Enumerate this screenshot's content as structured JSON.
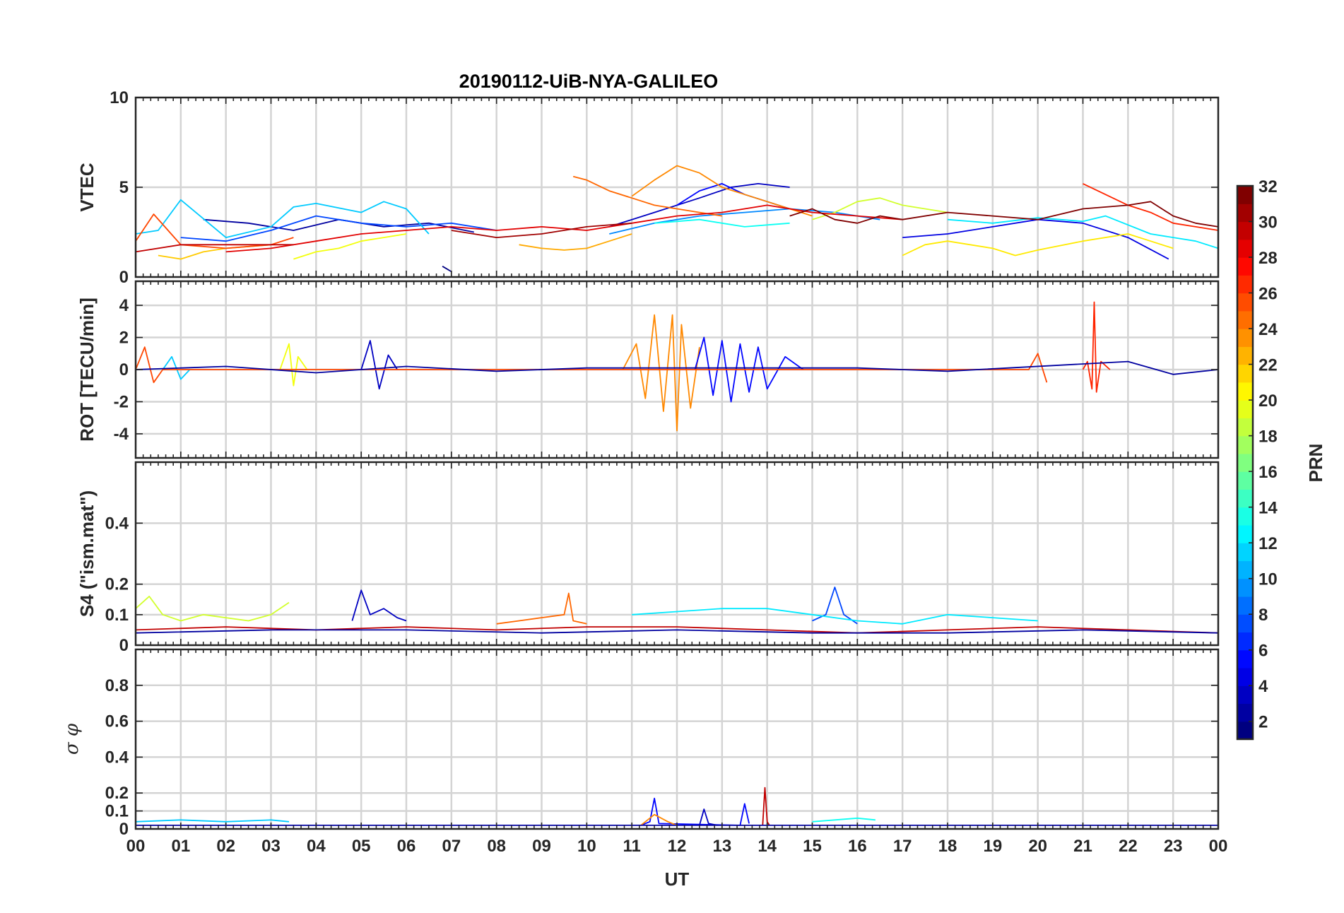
{
  "figure": {
    "title": "20190112-UiB-NYA-GALILEO",
    "xlabel": "UT",
    "x_tick_labels": [
      "00",
      "01",
      "02",
      "03",
      "04",
      "05",
      "06",
      "07",
      "08",
      "09",
      "10",
      "11",
      "12",
      "13",
      "14",
      "15",
      "16",
      "17",
      "18",
      "19",
      "20",
      "21",
      "22",
      "23",
      "00"
    ]
  },
  "colorbar": {
    "label": "PRN",
    "range": [
      1,
      32
    ],
    "tick_values": [
      2,
      4,
      6,
      8,
      10,
      12,
      14,
      16,
      18,
      20,
      22,
      24,
      26,
      28,
      30,
      32
    ],
    "tick_labels": [
      "2",
      "4",
      "6",
      "8",
      "10",
      "12",
      "14",
      "16",
      "18",
      "20",
      "22",
      "24",
      "26",
      "28",
      "30",
      "32"
    ],
    "colormap": "jet"
  },
  "chart_data": [
    {
      "type": "line",
      "panel": "VTEC",
      "title": "20190112-UiB-NYA-GALILEO",
      "ylabel": "VTEC",
      "xlabel": "",
      "xlim": [
        0,
        24
      ],
      "ylim": [
        0,
        10
      ],
      "grid": true,
      "y_ticks": [
        0,
        5,
        10
      ],
      "y_tick_labels": [
        "0",
        "5",
        "10"
      ],
      "series": [
        {
          "name": "PRN 1",
          "prn": 1,
          "x": [
            6.8,
            7.0
          ],
          "values": [
            0.6,
            0.3
          ]
        },
        {
          "name": "PRN 2",
          "prn": 2,
          "x": [
            1.5,
            2.5,
            3.5,
            4.5,
            5.5,
            6.5,
            7.5
          ],
          "values": [
            3.2,
            3.0,
            2.6,
            3.2,
            2.8,
            3.0,
            2.5
          ]
        },
        {
          "name": "PRN 3",
          "prn": 3,
          "x": [
            10.5,
            11.5,
            12.5,
            13.2,
            13.8,
            14.5
          ],
          "values": [
            2.8,
            3.6,
            4.4,
            5.0,
            5.2,
            5.0
          ]
        },
        {
          "name": "PRN 4",
          "prn": 4,
          "x": [
            17.0,
            18.0,
            19.0,
            20.0,
            21.0,
            22.0,
            22.9
          ],
          "values": [
            2.2,
            2.4,
            2.8,
            3.2,
            3.0,
            2.2,
            1.0
          ]
        },
        {
          "name": "PRN 5",
          "prn": 5,
          "x": [
            12.0,
            12.5,
            13.0,
            13.5,
            14.0,
            14.5
          ],
          "values": [
            4.0,
            4.8,
            5.2,
            4.6,
            4.2,
            3.8
          ]
        },
        {
          "name": "PRN 7",
          "prn": 7,
          "x": [
            1.0,
            2.0,
            3.0,
            4.0,
            5.0,
            6.0,
            7.0,
            8.0
          ],
          "values": [
            2.2,
            2.0,
            2.6,
            3.4,
            3.0,
            2.8,
            3.0,
            2.6
          ]
        },
        {
          "name": "PRN 9",
          "prn": 9,
          "x": [
            10.5,
            11.5,
            12.5,
            13.5,
            14.5,
            15.5,
            16.5
          ],
          "values": [
            2.4,
            3.0,
            3.4,
            3.6,
            3.8,
            3.6,
            3.2
          ]
        },
        {
          "name": "PRN 11",
          "prn": 11,
          "x": [
            0,
            0.5,
            1.0,
            2.0,
            3.0,
            3.5,
            4.0,
            5.0,
            5.5,
            6.0,
            6.5
          ],
          "values": [
            2.4,
            2.6,
            4.3,
            2.2,
            2.8,
            3.9,
            4.1,
            3.6,
            4.2,
            3.8,
            2.4
          ]
        },
        {
          "name": "PRN 12",
          "prn": 12,
          "x": [
            18.0,
            19.0,
            20.0,
            21.0,
            21.5,
            22.5,
            23.5,
            24.0
          ],
          "values": [
            3.2,
            3.0,
            3.3,
            3.1,
            3.4,
            2.4,
            2.0,
            1.6
          ]
        },
        {
          "name": "PRN 13",
          "prn": 13,
          "x": [
            11.5,
            12.0,
            12.5,
            13.0,
            13.5,
            14.0,
            14.5
          ],
          "values": [
            3.0,
            3.1,
            3.2,
            3.0,
            2.8,
            2.9,
            3.0
          ]
        },
        {
          "name": "PRN 19",
          "prn": 19,
          "x": [
            15.0,
            15.5,
            16.0,
            16.5,
            17.0,
            17.5,
            18.0
          ],
          "values": [
            3.2,
            3.6,
            4.2,
            4.4,
            4.0,
            3.8,
            3.6
          ]
        },
        {
          "name": "PRN 20",
          "prn": 20,
          "x": [
            3.5,
            4.0,
            4.5,
            5.0,
            5.5,
            6.0
          ],
          "values": [
            1.0,
            1.4,
            1.6,
            2.0,
            2.2,
            2.4
          ]
        },
        {
          "name": "PRN 21",
          "prn": 21,
          "x": [
            17.0,
            17.5,
            18.0,
            19.0,
            19.5,
            20.0,
            21.0,
            22.0,
            22.5,
            23.0
          ],
          "values": [
            1.2,
            1.8,
            2.0,
            1.6,
            1.2,
            1.5,
            2.0,
            2.4,
            2.0,
            1.6
          ]
        },
        {
          "name": "PRN 22",
          "prn": 22,
          "x": [
            0.5,
            1.0,
            1.5,
            2.0,
            3.0
          ],
          "values": [
            1.2,
            1.0,
            1.4,
            1.6,
            1.8
          ]
        },
        {
          "name": "PRN 23",
          "prn": 23,
          "x": [
            8.5,
            9.0,
            9.5,
            10.0,
            10.5,
            11.0
          ],
          "values": [
            1.8,
            1.6,
            1.5,
            1.6,
            2.0,
            2.4
          ]
        },
        {
          "name": "PRN 24",
          "prn": 24,
          "x": [
            11.0,
            11.5,
            12.0,
            12.5,
            13.0,
            13.5,
            14.0,
            14.5,
            15.0
          ],
          "values": [
            4.5,
            5.4,
            6.2,
            5.8,
            5.0,
            4.6,
            4.2,
            3.8,
            3.4
          ]
        },
        {
          "name": "PRN 25",
          "prn": 25,
          "x": [
            9.7,
            10.0,
            10.5,
            11.0,
            11.5,
            12.0,
            12.5,
            13.0
          ],
          "values": [
            5.6,
            5.4,
            4.8,
            4.4,
            4.0,
            3.8,
            3.6,
            3.4
          ]
        },
        {
          "name": "PRN 26",
          "prn": 26,
          "x": [
            0,
            0.4,
            1.0,
            2.0,
            3.0,
            3.5
          ],
          "values": [
            2.0,
            3.5,
            1.8,
            1.6,
            1.8,
            2.2
          ]
        },
        {
          "name": "PRN 27",
          "prn": 27,
          "x": [
            21.0,
            21.5,
            22.0,
            22.5,
            23.0,
            23.5,
            24.0
          ],
          "values": [
            5.2,
            4.6,
            4.0,
            3.6,
            3.0,
            2.8,
            2.6
          ]
        },
        {
          "name": "PRN 29",
          "prn": 29,
          "x": [
            2.0,
            3.0,
            4.0,
            5.0,
            6.0,
            7.0,
            8.0,
            9.0,
            10.0,
            11.0,
            12.0,
            13.0,
            14.0,
            15.0,
            16.0,
            17.0
          ],
          "values": [
            1.4,
            1.6,
            2.0,
            2.4,
            2.6,
            2.8,
            2.6,
            2.8,
            2.6,
            3.0,
            3.4,
            3.6,
            4.0,
            3.6,
            3.4,
            3.2
          ]
        },
        {
          "name": "PRN 30",
          "prn": 30,
          "x": [
            0,
            1.0,
            2.0,
            3.0,
            3.5
          ],
          "values": [
            1.4,
            1.8,
            1.8,
            1.8,
            1.8
          ]
        },
        {
          "name": "PRN 31",
          "prn": 31,
          "x": [
            7.0,
            8.0,
            9.0,
            10.0,
            11.0
          ],
          "values": [
            2.6,
            2.2,
            2.4,
            2.8,
            3.0
          ]
        },
        {
          "name": "PRN 33",
          "prn": 33,
          "x": [
            14.5,
            15.0,
            15.5,
            16.0,
            16.5,
            17.0,
            18.0,
            19.0,
            20.0,
            21.0,
            22.0,
            22.5,
            23.0,
            23.5,
            24.0
          ],
          "values": [
            3.4,
            3.8,
            3.2,
            3.0,
            3.4,
            3.2,
            3.6,
            3.4,
            3.2,
            3.8,
            4.0,
            4.2,
            3.4,
            3.0,
            2.8
          ]
        }
      ]
    },
    {
      "type": "line",
      "panel": "ROT",
      "ylabel": "ROT [TECU/min]",
      "xlabel": "",
      "xlim": [
        0,
        24
      ],
      "ylim": [
        -5.5,
        5.5
      ],
      "grid": true,
      "y_ticks": [
        -4,
        -2,
        0,
        2,
        4
      ],
      "y_tick_labels": [
        "-4",
        "-2",
        "0",
        "2",
        "4"
      ],
      "series": [
        {
          "name": "PRN 24",
          "prn": 24,
          "x": [
            10.8,
            11.1,
            11.3,
            11.5,
            11.7,
            11.9,
            12.0,
            12.1,
            12.3,
            12.5
          ],
          "values": [
            0,
            1.6,
            -1.8,
            3.4,
            -2.6,
            3.4,
            -3.8,
            2.8,
            -2.4,
            1.4
          ]
        },
        {
          "name": "PRN 5",
          "prn": 5,
          "x": [
            12.4,
            12.6,
            12.8,
            13.0,
            13.2,
            13.4,
            13.6,
            13.8,
            14.0,
            14.4,
            14.8
          ],
          "values": [
            0,
            2.0,
            -1.6,
            1.8,
            -2.0,
            1.6,
            -1.4,
            1.4,
            -1.2,
            0.8,
            0
          ]
        },
        {
          "name": "PRN 3",
          "prn": 3,
          "x": [
            5.0,
            5.2,
            5.4,
            5.6,
            5.8
          ],
          "values": [
            0,
            1.8,
            -1.2,
            0.9,
            0
          ]
        },
        {
          "name": "PRN 27",
          "prn": 27,
          "x": [
            21.0,
            21.1,
            21.2,
            21.25,
            21.3,
            21.4,
            21.6
          ],
          "values": [
            0,
            0.5,
            -1.2,
            4.2,
            -1.4,
            0.5,
            0
          ]
        },
        {
          "name": "PRN 20",
          "prn": 20,
          "x": [
            3.2,
            3.4,
            3.5,
            3.6,
            3.8
          ],
          "values": [
            0,
            1.6,
            -1.0,
            0.8,
            0
          ]
        },
        {
          "name": "PRN 11",
          "prn": 11,
          "x": [
            0.6,
            0.8,
            1.0,
            1.2
          ],
          "values": [
            0,
            0.8,
            -0.6,
            0
          ]
        },
        {
          "name": "PRN 26",
          "prn": 26,
          "x": [
            0,
            0.2,
            0.4,
            0.6,
            19.8,
            20.0,
            20.2
          ],
          "values": [
            0,
            1.4,
            -0.8,
            0,
            0,
            1.0,
            -0.8
          ]
        },
        {
          "name": "PRN 2",
          "prn": 2,
          "x": [
            0,
            2,
            4,
            6,
            8,
            10,
            16,
            18,
            22,
            23,
            24
          ],
          "values": [
            0,
            0.2,
            -0.2,
            0.2,
            -0.1,
            0.1,
            0.1,
            -0.1,
            0.5,
            -0.3,
            0
          ]
        }
      ]
    },
    {
      "type": "line",
      "panel": "S4",
      "ylabel": "S4 (\"ism.mat\")",
      "xlabel": "",
      "xlim": [
        0,
        24
      ],
      "ylim": [
        0,
        0.6
      ],
      "grid": true,
      "y_ticks": [
        0,
        0.1,
        0.2,
        0.4
      ],
      "y_tick_labels": [
        "0",
        "0.1",
        "0.2",
        "0.4"
      ],
      "series": [
        {
          "name": "PRN 19",
          "prn": 19,
          "x": [
            0,
            0.3,
            0.6,
            1.0,
            1.5,
            2.5,
            3.0,
            3.4
          ],
          "values": [
            0.12,
            0.16,
            0.1,
            0.08,
            0.1,
            0.08,
            0.1,
            0.14
          ]
        },
        {
          "name": "PRN 3",
          "prn": 3,
          "x": [
            4.8,
            5.0,
            5.2,
            5.5,
            5.8,
            6.0
          ],
          "values": [
            0.08,
            0.18,
            0.1,
            0.12,
            0.09,
            0.08
          ]
        },
        {
          "name": "PRN 7",
          "prn": 7,
          "x": [
            15.0,
            15.3,
            15.5,
            15.7,
            16.0
          ],
          "values": [
            0.08,
            0.1,
            0.19,
            0.1,
            0.07
          ]
        },
        {
          "name": "PRN 25",
          "prn": 25,
          "x": [
            8.0,
            8.5,
            9.0,
            9.5,
            9.6,
            9.7,
            10.0
          ],
          "values": [
            0.07,
            0.08,
            0.09,
            0.1,
            0.17,
            0.08,
            0.07
          ]
        },
        {
          "name": "PRN 12",
          "prn": 12,
          "x": [
            11.0,
            12.0,
            13.0,
            14.0,
            15.0,
            16.0,
            17.0,
            18.0,
            19.0,
            20.0
          ],
          "values": [
            0.1,
            0.11,
            0.12,
            0.12,
            0.1,
            0.08,
            0.07,
            0.1,
            0.09,
            0.08
          ]
        },
        {
          "name": "PRN 30",
          "prn": 30,
          "x": [
            0,
            2,
            4,
            6,
            8,
            10,
            12,
            14,
            16,
            18,
            20,
            22,
            24
          ],
          "values": [
            0.05,
            0.06,
            0.05,
            0.06,
            0.05,
            0.06,
            0.06,
            0.05,
            0.04,
            0.05,
            0.06,
            0.05,
            0.04
          ]
        },
        {
          "name": "PRN 2",
          "prn": 2,
          "x": [
            0,
            3,
            6,
            9,
            12,
            15,
            18,
            21,
            24
          ],
          "values": [
            0.04,
            0.05,
            0.05,
            0.04,
            0.05,
            0.04,
            0.04,
            0.05,
            0.04
          ]
        }
      ]
    },
    {
      "type": "line",
      "panel": "sigma_phi",
      "ylabel": "σ φ",
      "xlabel": "UT",
      "xlim": [
        0,
        24
      ],
      "ylim": [
        0,
        1
      ],
      "grid": true,
      "y_ticks": [
        0,
        0.1,
        0.2,
        0.4,
        0.6,
        0.8
      ],
      "y_tick_labels": [
        "0",
        "0.1",
        "0.2",
        "0.4",
        "0.6",
        "0.8"
      ],
      "series": [
        {
          "name": "PRN 11",
          "prn": 11,
          "x": [
            0,
            1,
            2,
            3,
            3.4
          ],
          "values": [
            0.04,
            0.05,
            0.04,
            0.05,
            0.04
          ]
        },
        {
          "name": "PRN 13",
          "prn": 13,
          "x": [
            15.0,
            15.5,
            16.0,
            16.4
          ],
          "values": [
            0.04,
            0.05,
            0.06,
            0.05
          ]
        },
        {
          "name": "PRN 5",
          "prn": 5,
          "x": [
            11.2,
            11.4,
            11.5,
            11.6,
            13.4,
            13.5,
            13.6
          ],
          "values": [
            0.02,
            0.04,
            0.17,
            0.03,
            0.02,
            0.14,
            0.03
          ]
        },
        {
          "name": "PRN 3",
          "prn": 3,
          "x": [
            12.5,
            12.6,
            12.7,
            12.9
          ],
          "values": [
            0.02,
            0.11,
            0.03,
            0.02
          ]
        },
        {
          "name": "PRN 30",
          "prn": 30,
          "x": [
            13.9,
            13.95,
            14.0,
            14.05
          ],
          "values": [
            0.02,
            0.23,
            0.04,
            0.02
          ]
        },
        {
          "name": "PRN 24",
          "prn": 24,
          "x": [
            11.2,
            11.5,
            11.8,
            12.0
          ],
          "values": [
            0.02,
            0.08,
            0.04,
            0.02
          ]
        },
        {
          "name": "PRN 2",
          "prn": 2,
          "x": [
            0,
            4,
            8,
            12,
            16,
            20,
            24
          ],
          "values": [
            0.02,
            0.02,
            0.02,
            0.02,
            0.02,
            0.02,
            0.02
          ]
        }
      ]
    }
  ]
}
